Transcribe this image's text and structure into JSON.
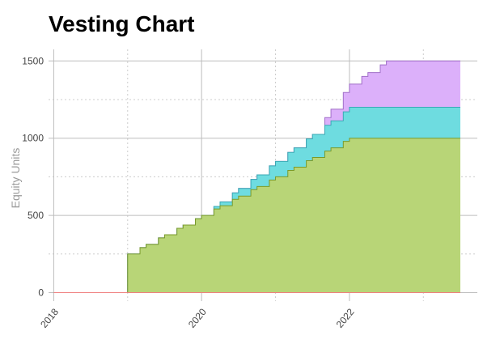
{
  "chart_data": {
    "type": "area",
    "stacked": true,
    "step": true,
    "title": "Vesting Chart",
    "xlabel": "",
    "ylabel": "Equity Units",
    "xlim": [
      2017.93,
      2023.73
    ],
    "ylim": [
      -55,
      1575
    ],
    "x_major_ticks": [
      2018,
      2020,
      2022
    ],
    "x_minor_ticks": [
      2019,
      2021,
      2023
    ],
    "y_major_ticks": [
      0,
      500,
      1000,
      1500
    ],
    "y_minor_ticks": [
      250,
      750,
      1250
    ],
    "grid": true,
    "legend": "none",
    "series": [
      {
        "color": "#b8d577",
        "steps": [
          {
            "x": 2018.0,
            "y": 0
          },
          {
            "x": 2019.0,
            "y": 250
          },
          {
            "x": 2022.0,
            "y": 1000
          },
          {
            "x": 2023.5,
            "y": 1000
          }
        ],
        "increments": 36
      },
      {
        "color": "#6edce0",
        "steps": [
          {
            "x": 2020.0,
            "y": 0
          },
          {
            "x": 2022.0,
            "y": 200
          },
          {
            "x": 2023.5,
            "y": 200
          }
        ],
        "increments": 24
      },
      {
        "color": "#dcb0fa",
        "steps": [
          {
            "x": 2021.5,
            "y": 0
          },
          {
            "x": 2022.5,
            "y": 300
          },
          {
            "x": 2023.5,
            "y": 300
          }
        ],
        "increments": 12
      }
    ],
    "baseline_color": "#f08080"
  }
}
